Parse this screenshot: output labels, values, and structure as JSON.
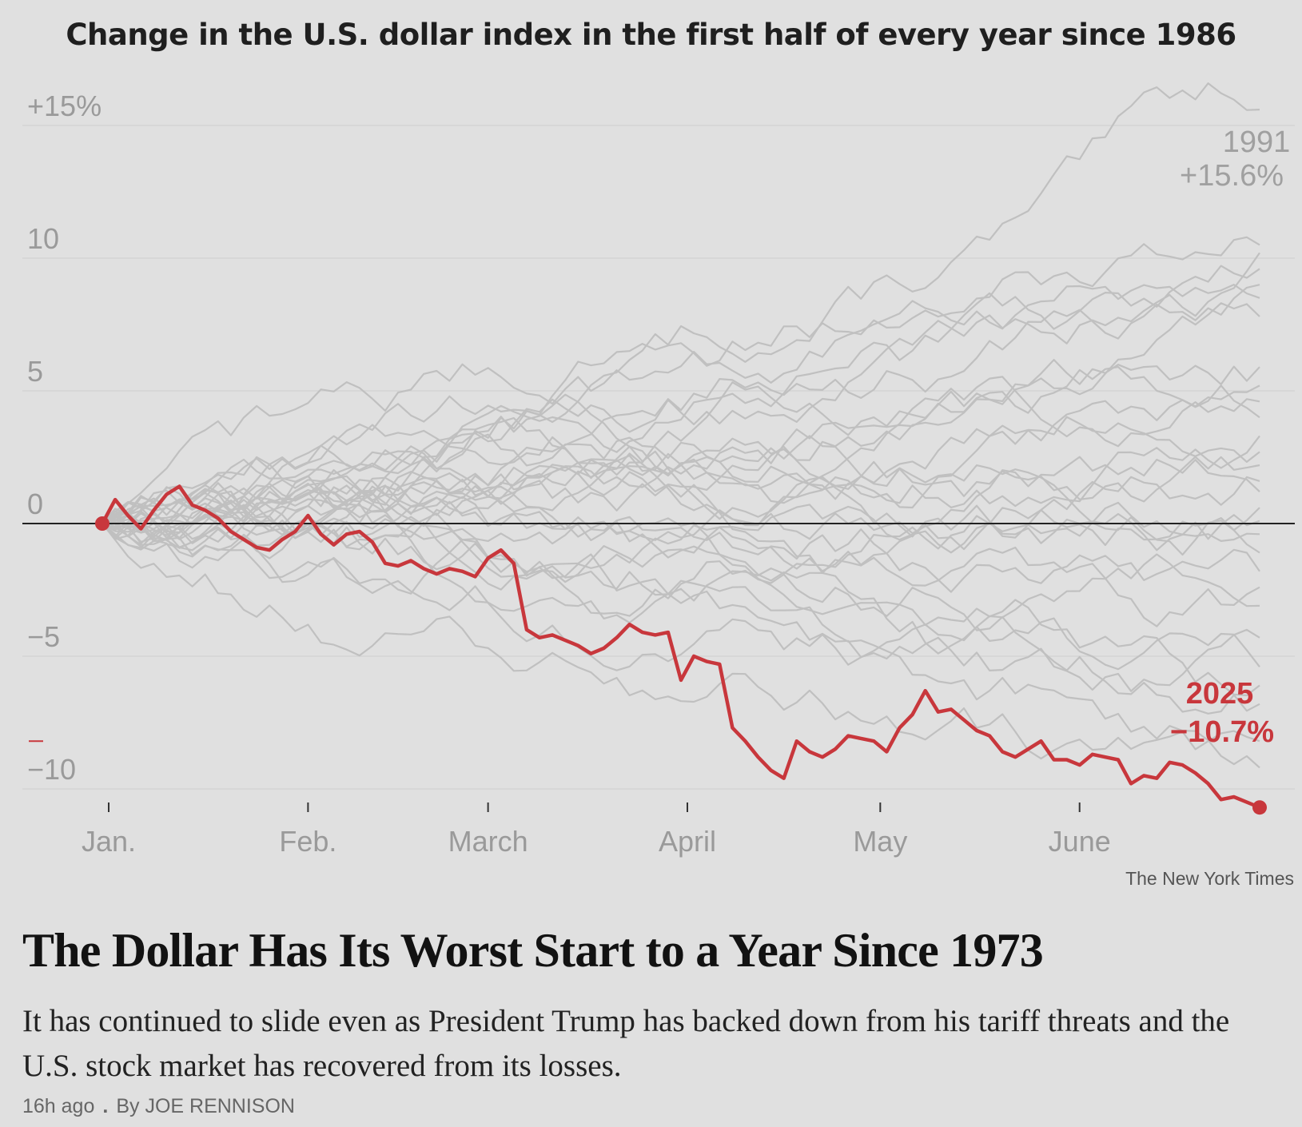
{
  "article": {
    "headline": "The Dollar Has Its Worst Start to a Year Since 1973",
    "summary": "It has continued to slide even as President Trump has backed down from his tariff threats and the U.S. stock market has recovered from its losses.",
    "time_ago": "16h ago",
    "byline": "By JOE RENNISON"
  },
  "chart_credit": "The New York Times",
  "colors": {
    "background": "#e0e0e0",
    "highlight": "#c8373c",
    "history": "#c0c0c0",
    "zero_line": "#222222",
    "gridline": "#d4d4d4",
    "axis_text": "#9a9a9a"
  },
  "chart_data": {
    "type": "line",
    "title": "Change in the U.S. dollar index in the first half of every year since 1986",
    "xlabel": "",
    "ylabel": "",
    "xlim": [
      0,
      180
    ],
    "ylim": [
      -10.6,
      15.6
    ],
    "ytick_values": [
      15,
      10,
      5,
      0,
      -5,
      -10
    ],
    "ytick_labels": [
      "+15%",
      "10",
      "5",
      "0",
      "−5",
      "−10"
    ],
    "month_ticks": [
      {
        "label": "Jan.",
        "day": 1
      },
      {
        "label": "Feb.",
        "day": 32
      },
      {
        "label": "March",
        "day": 60
      },
      {
        "label": "April",
        "day": 91
      },
      {
        "label": "May",
        "day": 121
      },
      {
        "label": "June",
        "day": 152
      }
    ],
    "annotations": [
      {
        "year": "1991",
        "value": "+15.6%"
      },
      {
        "year": "2025",
        "value": "−10.7%"
      }
    ],
    "highlight_series": {
      "name": "2025",
      "x": [
        0,
        2,
        4,
        6,
        8,
        10,
        12,
        14,
        16,
        18,
        20,
        22,
        24,
        26,
        28,
        30,
        32,
        34,
        36,
        38,
        40,
        42,
        44,
        46,
        48,
        50,
        52,
        54,
        56,
        58,
        60,
        62,
        64,
        66,
        68,
        70,
        72,
        74,
        76,
        78,
        80,
        82,
        84,
        86,
        88,
        90,
        92,
        94,
        96,
        98,
        100,
        102,
        104,
        106,
        108,
        110,
        112,
        114,
        116,
        118,
        120,
        122,
        124,
        126,
        128,
        130,
        132,
        134,
        136,
        138,
        140,
        142,
        144,
        146,
        148,
        150,
        152,
        154,
        156,
        158,
        160,
        162,
        164,
        166,
        168,
        170,
        172,
        174,
        176,
        178,
        180
      ],
      "values": [
        0,
        0.9,
        0.3,
        -0.2,
        0.5,
        1.1,
        1.4,
        0.7,
        0.5,
        0.2,
        -0.3,
        -0.6,
        -0.9,
        -1.0,
        -0.6,
        -0.3,
        0.3,
        -0.4,
        -0.8,
        -0.4,
        -0.3,
        -0.7,
        -1.5,
        -1.6,
        -1.4,
        -1.7,
        -1.9,
        -1.7,
        -1.8,
        -2.0,
        -1.3,
        -1.0,
        -1.5,
        -4.0,
        -4.3,
        -4.2,
        -4.4,
        -4.6,
        -4.9,
        -4.7,
        -4.3,
        -3.8,
        -4.1,
        -4.2,
        -4.1,
        -5.9,
        -5.0,
        -5.2,
        -5.3,
        -7.7,
        -8.2,
        -8.8,
        -9.3,
        -9.6,
        -8.2,
        -8.6,
        -8.8,
        -8.5,
        -8.0,
        -8.1,
        -8.2,
        -8.6,
        -7.7,
        -7.2,
        -6.3,
        -7.1,
        -7.0,
        -7.4,
        -7.8,
        -8.0,
        -8.6,
        -8.8,
        -8.5,
        -8.2,
        -8.9,
        -8.9,
        -9.1,
        -8.7,
        -8.8,
        -8.9,
        -9.8,
        -9.5,
        -9.6,
        -9.0,
        -9.1,
        -9.4,
        -9.8,
        -10.4,
        -10.3,
        -10.5,
        -10.7
      ]
    },
    "history_series": [
      {
        "name": "1991",
        "final": 15.6
      },
      {
        "name": "history-02",
        "final": 10.5
      },
      {
        "name": "history-03",
        "final": 10.2
      },
      {
        "name": "history-04",
        "final": 9.6
      },
      {
        "name": "history-05",
        "final": 9.0
      },
      {
        "name": "history-06",
        "final": 8.5
      },
      {
        "name": "history-07",
        "final": 7.8
      },
      {
        "name": "history-08",
        "final": 5.9
      },
      {
        "name": "history-09",
        "final": 5.2
      },
      {
        "name": "history-10",
        "final": 4.6
      },
      {
        "name": "history-11",
        "final": 4.0
      },
      {
        "name": "history-12",
        "final": 3.3
      },
      {
        "name": "history-13",
        "final": 2.7
      },
      {
        "name": "history-14",
        "final": 2.2
      },
      {
        "name": "history-15",
        "final": 1.6
      },
      {
        "name": "history-16",
        "final": 1.2
      },
      {
        "name": "history-17",
        "final": 0.6
      },
      {
        "name": "history-18",
        "final": 0.1
      },
      {
        "name": "history-19",
        "final": -0.4
      },
      {
        "name": "history-20",
        "final": -1.1
      },
      {
        "name": "history-21",
        "final": -1.8
      },
      {
        "name": "history-22",
        "final": -2.4
      },
      {
        "name": "history-23",
        "final": -3.1
      },
      {
        "name": "history-24",
        "final": -4.3
      },
      {
        "name": "history-25",
        "final": -5.4
      },
      {
        "name": "history-26",
        "final": -6.1
      },
      {
        "name": "history-27",
        "final": -6.8
      },
      {
        "name": "history-28",
        "final": -8.2
      },
      {
        "name": "history-29",
        "final": -9.2
      }
    ]
  }
}
